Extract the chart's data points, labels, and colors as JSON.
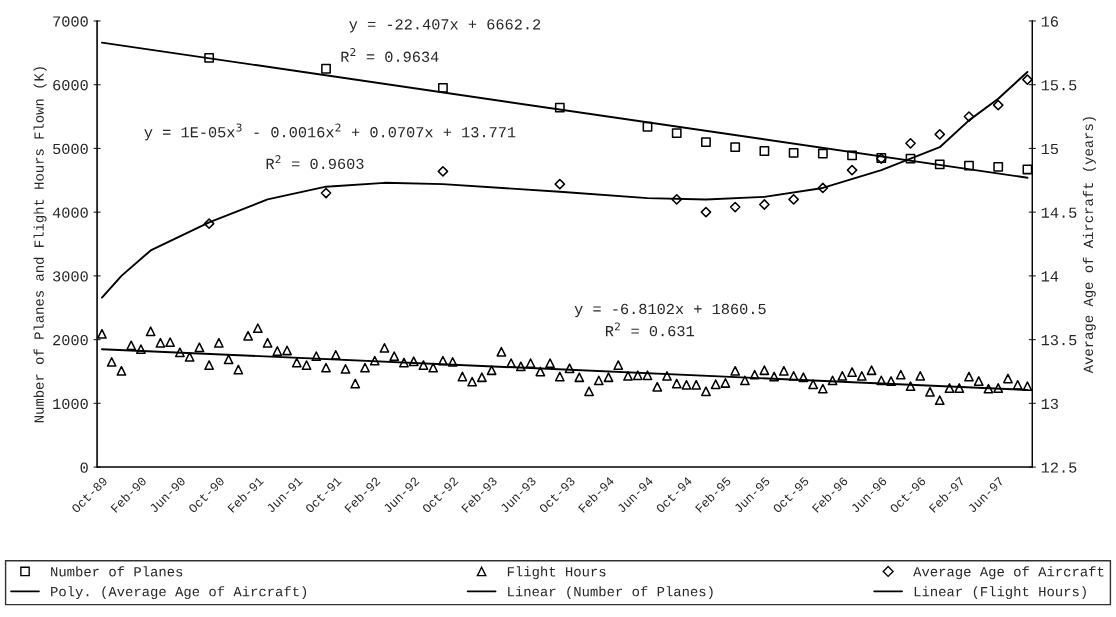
{
  "chart_data": {
    "type": "scatter",
    "ylabel": "Number of Planes and Flight Hours Flown (K)",
    "y2label": "Average Age of Aircraft (years)",
    "categories": [
      "Oct-89",
      null,
      null,
      null,
      "Feb-90",
      null,
      null,
      null,
      "Jun-90",
      null,
      null,
      null,
      "Oct-90",
      null,
      null,
      null,
      "Feb-91",
      null,
      null,
      null,
      "Jun-91",
      null,
      null,
      null,
      "Oct-91",
      null,
      null,
      null,
      "Feb-92",
      null,
      null,
      null,
      "Jun-92",
      null,
      null,
      null,
      "Oct-92",
      null,
      null,
      null,
      "Feb-93",
      null,
      null,
      null,
      "Jun-93",
      null,
      null,
      null,
      "Oct-93",
      null,
      null,
      null,
      "Feb-94",
      null,
      null,
      null,
      "Jun-94",
      null,
      null,
      null,
      "Oct-94",
      null,
      null,
      null,
      "Feb-95",
      null,
      null,
      null,
      "Jun-95",
      null,
      null,
      null,
      "Oct-95",
      null,
      null,
      null,
      "Feb-96",
      null,
      null,
      null,
      "Jun-96",
      null,
      null,
      null,
      "Oct-96",
      null,
      null,
      null,
      "Feb-97",
      null,
      null,
      null,
      "Jun-97",
      null,
      null,
      null
    ],
    "ylim": [
      0,
      7000
    ],
    "yticks": [
      0,
      1000,
      2000,
      3000,
      4000,
      5000,
      6000,
      7000
    ],
    "y2lim": [
      12.5,
      16
    ],
    "y2ticks": [
      12.5,
      13,
      13.5,
      14,
      14.5,
      15,
      15.5,
      16
    ],
    "legend": "bottom",
    "series": [
      {
        "name": "Number of Planes",
        "marker": "square",
        "color": "#000000",
        "values": [
          null,
          null,
          null,
          null,
          null,
          null,
          null,
          null,
          null,
          null,
          null,
          6420,
          null,
          null,
          null,
          null,
          null,
          null,
          null,
          null,
          null,
          null,
          null,
          6250,
          null,
          null,
          null,
          null,
          null,
          null,
          null,
          null,
          null,
          null,
          null,
          5950,
          null,
          null,
          null,
          null,
          null,
          null,
          null,
          null,
          null,
          null,
          null,
          5640,
          null,
          null,
          null,
          null,
          null,
          null,
          null,
          null,
          5340,
          null,
          null,
          5240,
          null,
          null,
          5100,
          null,
          null,
          5020,
          null,
          null,
          4960,
          null,
          null,
          4930,
          null,
          null,
          4920,
          null,
          null,
          4890,
          null,
          null,
          4850,
          null,
          null,
          4840,
          null,
          null,
          4750,
          null,
          null,
          4730,
          null,
          null,
          4710,
          null,
          null,
          4670
        ]
      },
      {
        "name": "Flight Hours",
        "marker": "triangle",
        "color": "#000000",
        "values": [
          2090,
          1650,
          1510,
          1910,
          1850,
          2130,
          1950,
          1960,
          1800,
          1730,
          1880,
          1600,
          1950,
          1690,
          1530,
          2060,
          2180,
          1950,
          1820,
          1830,
          1640,
          1600,
          1740,
          1560,
          1760,
          1540,
          1310,
          1560,
          1670,
          1870,
          1740,
          1640,
          1660,
          1600,
          1560,
          1670,
          1650,
          1420,
          1340,
          1410,
          1520,
          1810,
          1630,
          1580,
          1630,
          1500,
          1630,
          1420,
          1550,
          1410,
          1190,
          1360,
          1410,
          1600,
          1430,
          1440,
          1440,
          1260,
          1430,
          1310,
          1290,
          1290,
          1190,
          1300,
          1320,
          1510,
          1360,
          1450,
          1520,
          1420,
          1510,
          1430,
          1410,
          1300,
          1230,
          1360,
          1430,
          1490,
          1430,
          1520,
          1360,
          1350,
          1450,
          1270,
          1430,
          1180,
          1050,
          1240,
          1240,
          1420,
          1350,
          1230,
          1240,
          1390,
          1290,
          1270
        ]
      },
      {
        "name": "Average Age of Aircraft",
        "marker": "diamond",
        "color": "#000000",
        "axis": "y2",
        "values": [
          null,
          null,
          null,
          null,
          null,
          null,
          null,
          null,
          null,
          null,
          null,
          14.41,
          null,
          null,
          null,
          null,
          null,
          null,
          null,
          null,
          null,
          null,
          null,
          14.65,
          null,
          null,
          null,
          null,
          null,
          null,
          null,
          null,
          null,
          null,
          null,
          14.82,
          null,
          null,
          null,
          null,
          null,
          null,
          null,
          null,
          null,
          null,
          null,
          14.72,
          null,
          null,
          null,
          null,
          null,
          null,
          null,
          null,
          null,
          null,
          null,
          14.6,
          null,
          null,
          14.5,
          null,
          null,
          14.54,
          null,
          null,
          14.56,
          null,
          null,
          14.6,
          null,
          null,
          14.69,
          null,
          null,
          14.83,
          null,
          null,
          14.92,
          null,
          null,
          15.04,
          null,
          null,
          15.11,
          null,
          null,
          15.25,
          null,
          null,
          15.34,
          null,
          null,
          15.54
        ]
      },
      {
        "name": "Poly. (Average Age of Aircraft)",
        "type": "line",
        "color": "#000000",
        "axis": "y2",
        "values": [
          13.83,
          null,
          14.0,
          null,
          null,
          14.2,
          null,
          null,
          null,
          null,
          null,
          14.42,
          null,
          null,
          null,
          null,
          null,
          14.6,
          null,
          null,
          null,
          null,
          null,
          14.7,
          null,
          null,
          null,
          null,
          null,
          14.73,
          null,
          null,
          null,
          null,
          null,
          14.72,
          null,
          null,
          null,
          null,
          null,
          null,
          null,
          null,
          null,
          null,
          null,
          14.66,
          null,
          null,
          null,
          null,
          null,
          null,
          null,
          null,
          14.61,
          null,
          null,
          null,
          null,
          null,
          14.6,
          null,
          null,
          null,
          null,
          null,
          14.62,
          null,
          null,
          null,
          null,
          null,
          14.69,
          null,
          null,
          null,
          null,
          null,
          14.83,
          null,
          null,
          14.92,
          null,
          null,
          15.01,
          null,
          null,
          15.22,
          null,
          null,
          15.39,
          null,
          null,
          15.6
        ]
      },
      {
        "name": "Linear (Number of Planes)",
        "type": "line",
        "color": "#000000",
        "values": [
          6660,
          null,
          null,
          null,
          null,
          null,
          null,
          null,
          null,
          null,
          null,
          null,
          null,
          null,
          null,
          null,
          null,
          null,
          null,
          null,
          null,
          null,
          null,
          null,
          null,
          null,
          null,
          null,
          null,
          null,
          null,
          null,
          null,
          null,
          null,
          null,
          null,
          null,
          null,
          null,
          null,
          null,
          null,
          null,
          null,
          null,
          null,
          null,
          null,
          null,
          null,
          null,
          null,
          null,
          null,
          null,
          null,
          null,
          null,
          null,
          null,
          null,
          null,
          null,
          null,
          null,
          null,
          null,
          null,
          null,
          null,
          null,
          null,
          null,
          null,
          null,
          null,
          null,
          null,
          null,
          null,
          null,
          null,
          null,
          null,
          null,
          null,
          null,
          null,
          null,
          null,
          null,
          null,
          null,
          null,
          4540
        ]
      },
      {
        "name": "Linear (Flight Hours)",
        "type": "line",
        "color": "#000000",
        "values": [
          1850,
          null,
          null,
          null,
          null,
          null,
          null,
          null,
          null,
          null,
          null,
          null,
          null,
          null,
          null,
          null,
          null,
          null,
          null,
          null,
          null,
          null,
          null,
          null,
          null,
          null,
          null,
          null,
          null,
          null,
          null,
          null,
          null,
          null,
          null,
          null,
          null,
          null,
          null,
          null,
          null,
          null,
          null,
          null,
          null,
          null,
          null,
          null,
          null,
          null,
          null,
          null,
          null,
          null,
          null,
          null,
          null,
          null,
          null,
          null,
          null,
          null,
          null,
          null,
          null,
          null,
          null,
          null,
          null,
          null,
          null,
          null,
          null,
          null,
          null,
          null,
          null,
          null,
          null,
          null,
          null,
          null,
          null,
          null,
          null,
          null,
          null,
          null,
          null,
          null,
          null,
          null,
          null,
          null,
          null,
          1210
        ]
      }
    ],
    "annotations": [
      "y = -22.407x + 6662.2",
      "R$^{2}$ = 0.9634",
      "y = 1E-05x$^{3}$ - 0.0016x$^{2}$ + 0.0707x + 13.771",
      "R$^{2}$ = 0.9603",
      "y = -6.8102x + 1860.5",
      "R$^{2}$ = 0.631"
    ]
  }
}
